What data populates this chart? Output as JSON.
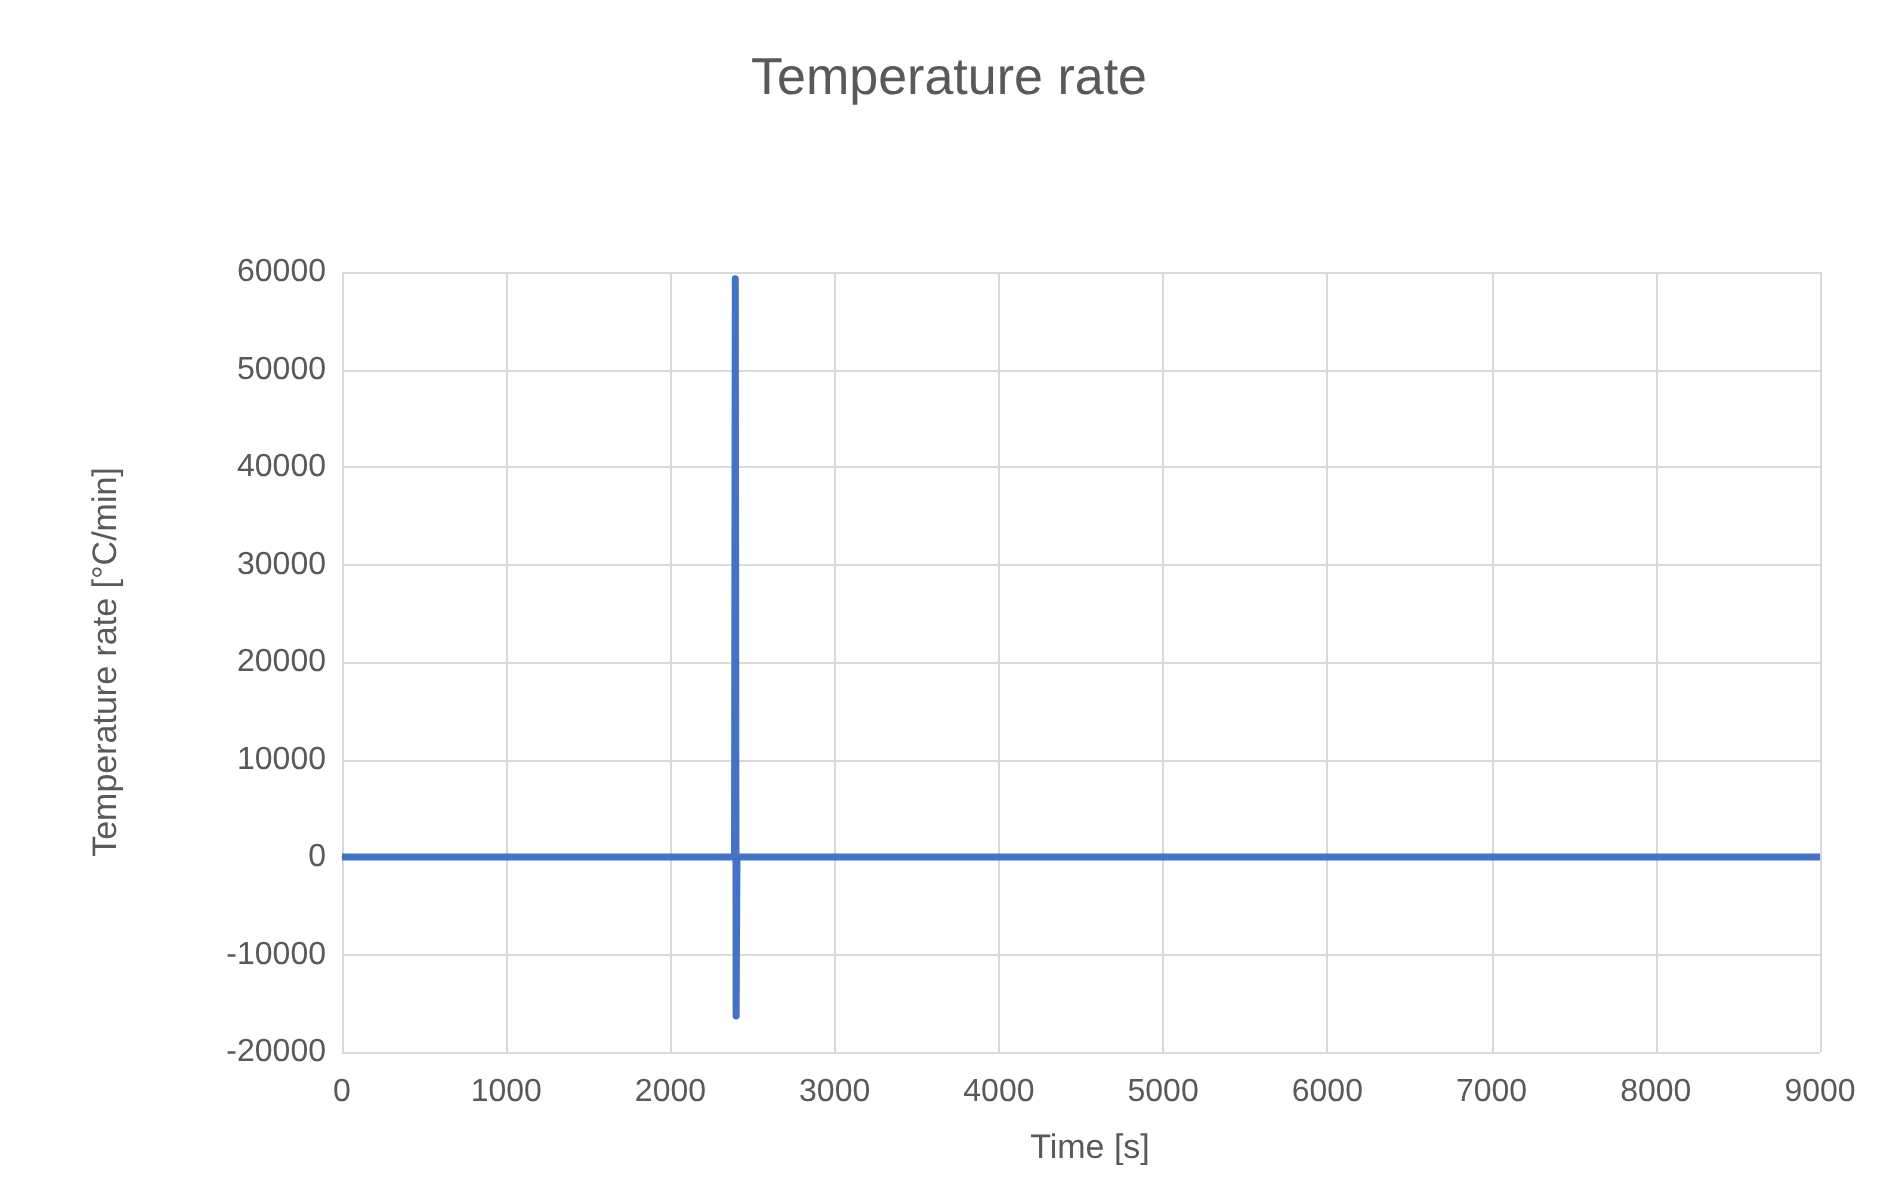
{
  "chart_data": {
    "type": "line",
    "title": "Temperature rate",
    "xlabel": "Time [s]",
    "ylabel": "Temperature rate [°C/min]",
    "series": [
      {
        "color": "#4472c4",
        "x": [
          0,
          2390,
          2395,
          2400,
          2405,
          9000
        ],
        "values": [
          0,
          0,
          59300,
          -16300,
          0,
          0
        ]
      }
    ],
    "xlim": [
      0,
      9000
    ],
    "xticks": [
      0,
      1000,
      2000,
      3000,
      4000,
      5000,
      6000,
      7000,
      8000,
      9000
    ],
    "ylim": [
      -20000,
      60000
    ],
    "yticks": [
      -20000,
      -10000,
      0,
      10000,
      20000,
      30000,
      40000,
      50000,
      60000
    ],
    "grid": true,
    "marker": "none",
    "line_style": "solid"
  }
}
